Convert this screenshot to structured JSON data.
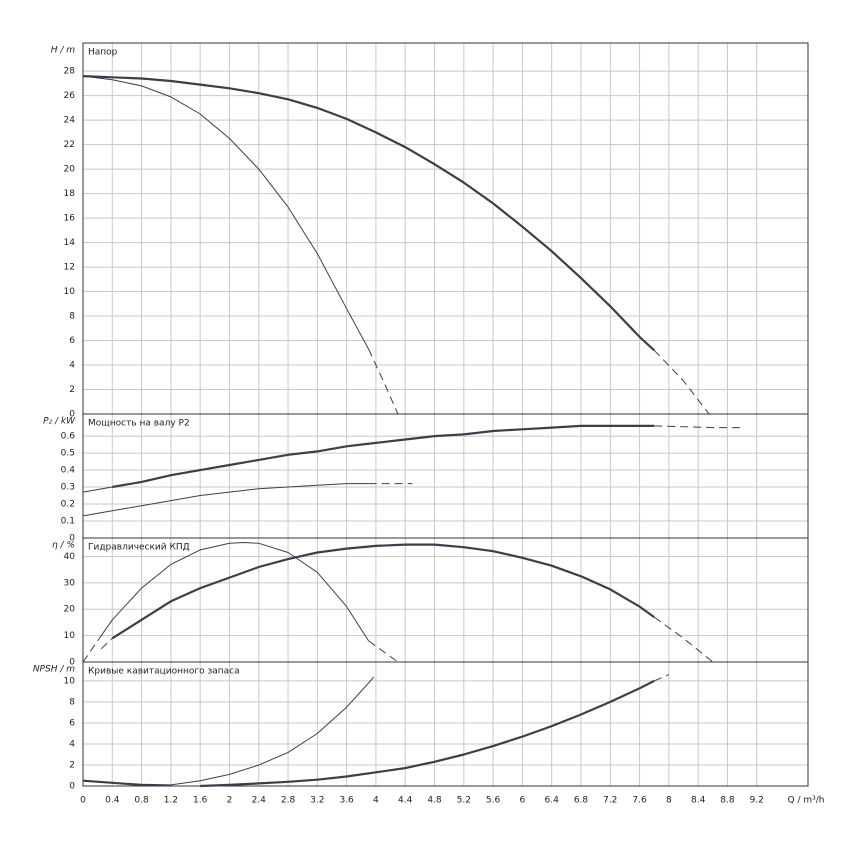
{
  "chart_data": [
    {
      "type": "line",
      "title": "Напор",
      "ylabel": "H / m",
      "xlim": [
        0,
        9.9
      ],
      "ylim": [
        0,
        30.3
      ],
      "xticks": [
        0,
        0.4,
        0.8,
        1.2,
        1.6,
        2,
        2.4,
        2.8,
        3.2,
        3.6,
        4,
        4.4,
        4.8,
        5.2,
        5.6,
        6,
        6.4,
        6.8,
        7.2,
        7.6,
        8,
        8.4,
        8.8,
        9.2
      ],
      "yticks": [
        0,
        2,
        4,
        6,
        8,
        10,
        12,
        14,
        16,
        18,
        20,
        22,
        24,
        26,
        28
      ],
      "grid": true,
      "series": [
        {
          "color": "#3a3f4a",
          "width": 2.2,
          "dash": false,
          "x": [
            0,
            0.4,
            0.8,
            1.2,
            1.6,
            2,
            2.4,
            2.8,
            3.2,
            3.6,
            4,
            4.4,
            4.8,
            5.2,
            5.6,
            6,
            6.4,
            6.8,
            7.2,
            7.6,
            7.8
          ],
          "values": [
            27.6,
            27.5,
            27.4,
            27.2,
            26.9,
            26.6,
            26.2,
            25.7,
            25.0,
            24.1,
            23.0,
            21.8,
            20.4,
            18.9,
            17.2,
            15.3,
            13.3,
            11.1,
            8.8,
            6.3,
            5.2
          ]
        },
        {
          "color": "#3a3f4a",
          "width": 1,
          "dash": true,
          "x": [
            7.8,
            8.2,
            8.55
          ],
          "values": [
            5.2,
            2.7,
            0
          ]
        },
        {
          "color": "#3a3f4a",
          "width": 1,
          "dash": false,
          "x": [
            0,
            0.4,
            0.8,
            1.2,
            1.6,
            2,
            2.4,
            2.8,
            3.2,
            3.6,
            3.9
          ],
          "values": [
            27.6,
            27.3,
            26.8,
            25.9,
            24.5,
            22.5,
            20.0,
            16.9,
            13.1,
            8.6,
            5.3
          ]
        },
        {
          "color": "#3a3f4a",
          "width": 1,
          "dash": true,
          "x": [
            3.9,
            4.1,
            4.3
          ],
          "values": [
            5.3,
            2.7,
            0
          ]
        }
      ]
    },
    {
      "type": "line",
      "title": "Мощность на валу P2",
      "ylabel": "P₂ / kW",
      "xlim": [
        0,
        9.9
      ],
      "ylim": [
        0,
        0.73
      ],
      "xticks": [
        0,
        0.4,
        0.8,
        1.2,
        1.6,
        2,
        2.4,
        2.8,
        3.2,
        3.6,
        4,
        4.4,
        4.8,
        5.2,
        5.6,
        6,
        6.4,
        6.8,
        7.2,
        7.6,
        8,
        8.4,
        8.8,
        9.2
      ],
      "yticks": [
        0,
        0.1,
        0.2,
        0.3,
        0.4,
        0.5,
        0.6
      ],
      "grid": true,
      "series": [
        {
          "color": "#3a3f4a",
          "width": 2.2,
          "dash": false,
          "x": [
            0.4,
            0.8,
            1.2,
            1.6,
            2,
            2.4,
            2.8,
            3.2,
            3.6,
            4,
            4.4,
            4.8,
            5.2,
            5.6,
            6,
            6.4,
            6.8,
            7.2,
            7.8
          ],
          "values": [
            0.3,
            0.33,
            0.37,
            0.4,
            0.43,
            0.46,
            0.49,
            0.51,
            0.54,
            0.56,
            0.58,
            0.6,
            0.61,
            0.63,
            0.64,
            0.65,
            0.66,
            0.66,
            0.66
          ]
        },
        {
          "color": "#3a3f4a",
          "width": 1,
          "dash": false,
          "x": [
            0,
            0.4
          ],
          "values": [
            0.27,
            0.3
          ]
        },
        {
          "color": "#3a3f4a",
          "width": 1,
          "dash": true,
          "x": [
            7.8,
            8.6,
            9.0
          ],
          "values": [
            0.66,
            0.65,
            0.65
          ]
        },
        {
          "color": "#3a3f4a",
          "width": 1,
          "dash": false,
          "x": [
            0,
            0.4,
            0.8,
            1.2,
            1.6,
            2,
            2.4,
            2.8,
            3.2,
            3.6,
            3.9
          ],
          "values": [
            0.13,
            0.16,
            0.19,
            0.22,
            0.25,
            0.27,
            0.29,
            0.3,
            0.31,
            0.32,
            0.32
          ]
        },
        {
          "color": "#3a3f4a",
          "width": 1,
          "dash": true,
          "x": [
            3.9,
            4.5
          ],
          "values": [
            0.32,
            0.32
          ]
        }
      ]
    },
    {
      "type": "line",
      "title": "Гидравлический КПД",
      "ylabel": "η / %",
      "xlim": [
        0,
        9.9
      ],
      "ylim": [
        0,
        47
      ],
      "xticks": [
        0,
        0.4,
        0.8,
        1.2,
        1.6,
        2,
        2.4,
        2.8,
        3.2,
        3.6,
        4,
        4.4,
        4.8,
        5.2,
        5.6,
        6,
        6.4,
        6.8,
        7.2,
        7.6,
        8,
        8.4,
        8.8,
        9.2
      ],
      "yticks": [
        0,
        10,
        20,
        30,
        40
      ],
      "grid": true,
      "series": [
        {
          "color": "#3a3f4a",
          "width": 1,
          "dash": true,
          "x": [
            0.25,
            0.4
          ],
          "values": [
            5,
            9
          ]
        },
        {
          "color": "#3a3f4a",
          "width": 2.2,
          "dash": false,
          "x": [
            0.4,
            0.8,
            1.2,
            1.6,
            2,
            2.4,
            2.8,
            3.2,
            3.6,
            4,
            4.4,
            4.8,
            5.2,
            5.6,
            6,
            6.4,
            6.8,
            7.2,
            7.6,
            7.8
          ],
          "values": [
            9,
            16,
            23,
            28,
            32,
            36,
            39,
            41.5,
            43,
            44,
            44.5,
            44.5,
            43.5,
            42,
            39.5,
            36.5,
            32.5,
            27.5,
            21,
            17
          ]
        },
        {
          "color": "#3a3f4a",
          "width": 1,
          "dash": true,
          "x": [
            7.8,
            8.2,
            8.6
          ],
          "values": [
            17,
            9,
            0
          ]
        },
        {
          "color": "#3a3f4a",
          "width": 1,
          "dash": true,
          "x": [
            0,
            0.2
          ],
          "values": [
            0,
            8
          ]
        },
        {
          "color": "#3a3f4a",
          "width": 1,
          "dash": false,
          "x": [
            0.2,
            0.4,
            0.8,
            1.2,
            1.6,
            2,
            2.2,
            2.4,
            2.8,
            3.2,
            3.6,
            3.9
          ],
          "values": [
            8,
            16,
            28,
            37,
            42.5,
            45,
            45.3,
            45,
            41.5,
            34,
            21,
            8
          ]
        },
        {
          "color": "#3a3f4a",
          "width": 1,
          "dash": true,
          "x": [
            3.9,
            4.3
          ],
          "values": [
            8,
            0
          ]
        }
      ]
    },
    {
      "type": "line",
      "title": "Кривые кавитационного запаса",
      "ylabel": "NPSH / m",
      "xlabel": "Q / m³/h",
      "xlim": [
        0,
        9.9
      ],
      "ylim": [
        0,
        11.8
      ],
      "xticks": [
        0,
        0.4,
        0.8,
        1.2,
        1.6,
        2,
        2.4,
        2.8,
        3.2,
        3.6,
        4,
        4.4,
        4.8,
        5.2,
        5.6,
        6,
        6.4,
        6.8,
        7.2,
        7.6,
        8,
        8.4,
        8.8,
        9.2
      ],
      "yticks": [
        0,
        2,
        4,
        6,
        8,
        10
      ],
      "grid": true,
      "series": [
        {
          "color": "#3a3f4a",
          "width": 2.2,
          "dash": false,
          "x": [
            0,
            0.4,
            0.8,
            1.2
          ],
          "values": [
            0.5,
            0.3,
            0.1,
            0.05
          ]
        },
        {
          "color": "#3a3f4a",
          "width": 2.2,
          "dash": false,
          "x": [
            1.6,
            2,
            2.4,
            2.8,
            3.2,
            3.6,
            4,
            4.4,
            4.8,
            5.2,
            5.6,
            6,
            6.4,
            6.8,
            7.2,
            7.6,
            7.8
          ],
          "values": [
            0,
            0.1,
            0.25,
            0.4,
            0.6,
            0.9,
            1.3,
            1.7,
            2.3,
            3.0,
            3.8,
            4.7,
            5.7,
            6.8,
            8.0,
            9.3,
            10.0
          ]
        },
        {
          "color": "#3a3f4a",
          "width": 1,
          "dash": true,
          "x": [
            7.8,
            8.0
          ],
          "values": [
            10.0,
            10.6
          ]
        },
        {
          "color": "#3a3f4a",
          "width": 1,
          "dash": false,
          "x": [
            0.8,
            1.2,
            1.6,
            2,
            2.4,
            2.8,
            3.2,
            3.6,
            3.9
          ],
          "values": [
            0.05,
            0.1,
            0.5,
            1.1,
            2.0,
            3.2,
            5.0,
            7.5,
            9.8
          ]
        },
        {
          "color": "#3a3f4a",
          "width": 1,
          "dash": true,
          "x": [
            3.9,
            4.0
          ],
          "values": [
            9.8,
            10.6
          ]
        }
      ]
    }
  ]
}
